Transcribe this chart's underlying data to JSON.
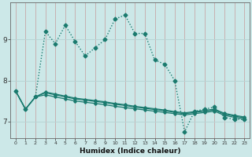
{
  "xlabel": "Humidex (Indice chaleur)",
  "bg_color": "#cce8e8",
  "line_color": "#1a7a6e",
  "grid_v_color": "#c8a8a8",
  "grid_h_color": "#b8d4d4",
  "x_values": [
    0,
    1,
    2,
    3,
    4,
    5,
    6,
    7,
    8,
    9,
    10,
    11,
    12,
    13,
    14,
    15,
    16,
    17,
    18,
    19,
    20,
    21,
    22,
    23
  ],
  "line1": [
    7.75,
    7.3,
    7.6,
    9.2,
    8.9,
    9.35,
    8.95,
    8.6,
    8.8,
    9.0,
    9.5,
    9.6,
    9.15,
    9.15,
    8.5,
    8.4,
    8.0,
    6.75,
    7.25,
    7.3,
    7.35,
    7.1,
    7.05,
    7.05
  ],
  "line2": [
    7.75,
    7.3,
    7.6,
    7.65,
    7.6,
    7.55,
    7.5,
    7.47,
    7.44,
    7.41,
    7.37,
    7.34,
    7.31,
    7.28,
    7.25,
    7.22,
    7.19,
    7.16,
    7.19,
    7.22,
    7.25,
    7.15,
    7.1,
    7.06
  ],
  "line3": [
    7.75,
    7.3,
    7.6,
    7.7,
    7.65,
    7.6,
    7.55,
    7.52,
    7.49,
    7.46,
    7.42,
    7.39,
    7.35,
    7.32,
    7.29,
    7.26,
    7.22,
    7.19,
    7.22,
    7.25,
    7.28,
    7.18,
    7.13,
    7.09
  ],
  "line4": [
    7.75,
    7.3,
    7.6,
    7.72,
    7.67,
    7.62,
    7.57,
    7.54,
    7.51,
    7.48,
    7.44,
    7.41,
    7.37,
    7.34,
    7.31,
    7.28,
    7.24,
    7.21,
    7.24,
    7.27,
    7.3,
    7.2,
    7.15,
    7.11
  ],
  "ylim": [
    6.6,
    9.9
  ],
  "yticks": [
    7,
    8,
    9
  ],
  "xlim": [
    -0.5,
    23.5
  ]
}
